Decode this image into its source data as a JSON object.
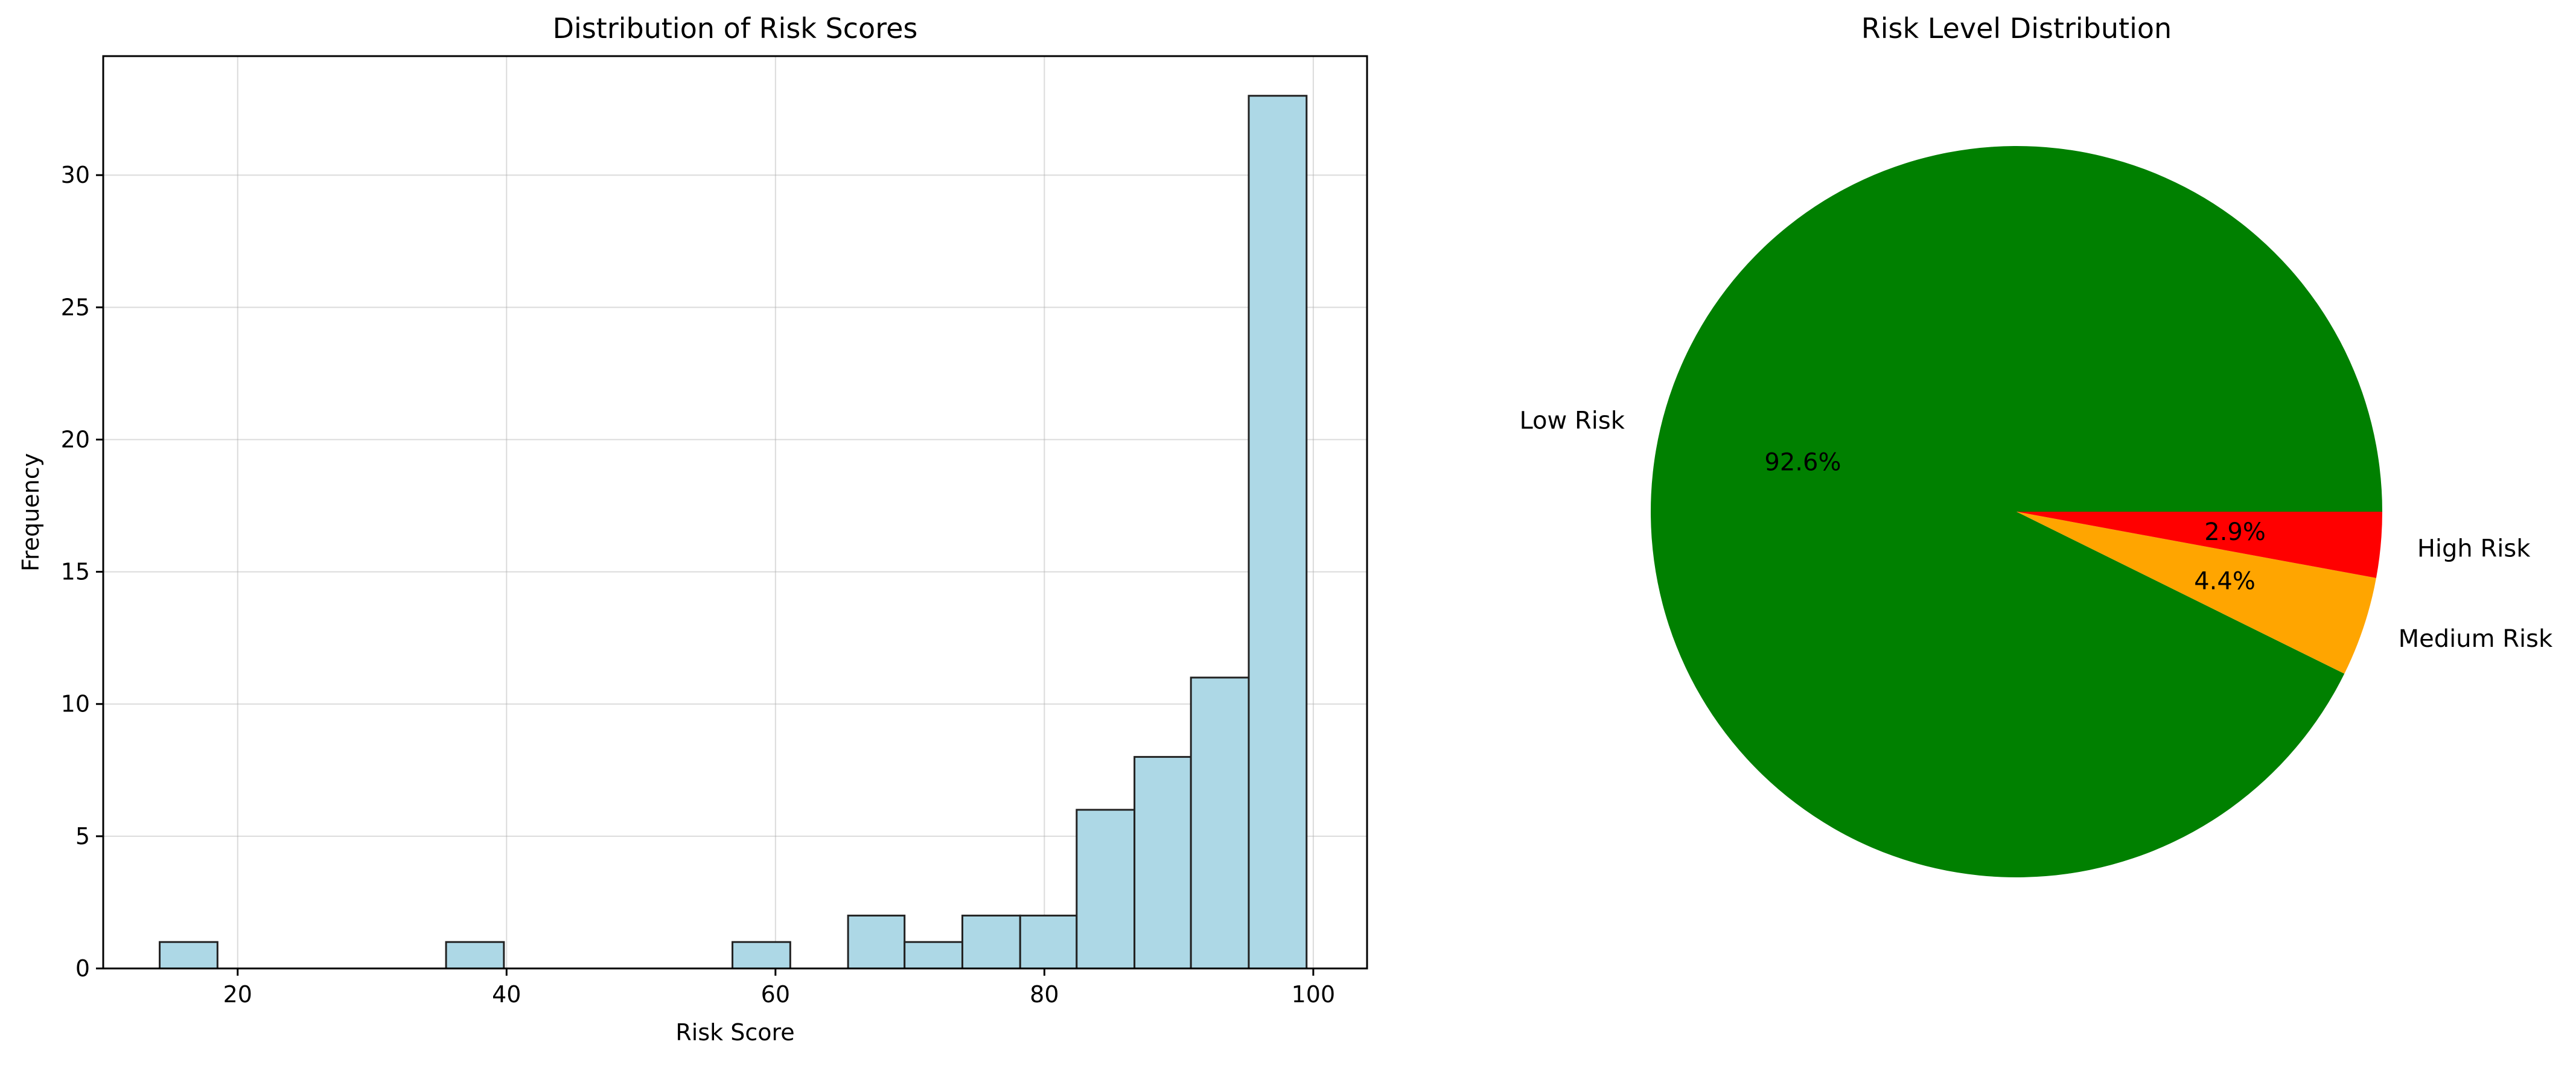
{
  "chart_data": [
    {
      "type": "bar",
      "title": "Distribution of Risk Scores",
      "xlabel": "Risk Score",
      "ylabel": "Frequency",
      "xlim": [
        10.0,
        104.0
      ],
      "ylim": [
        0,
        34.5
      ],
      "xticks": [
        20,
        40,
        60,
        80,
        100
      ],
      "yticks": [
        0,
        5,
        10,
        15,
        20,
        25,
        30
      ],
      "grid": true,
      "bar_color": "#add8e6",
      "edge_color": "#222222",
      "bins": [
        {
          "start": 14.2,
          "end": 18.5,
          "count": 1
        },
        {
          "start": 18.5,
          "end": 22.8,
          "count": 0
        },
        {
          "start": 22.8,
          "end": 27.0,
          "count": 0
        },
        {
          "start": 27.0,
          "end": 31.3,
          "count": 0
        },
        {
          "start": 31.3,
          "end": 35.5,
          "count": 0
        },
        {
          "start": 35.5,
          "end": 39.8,
          "count": 1
        },
        {
          "start": 39.8,
          "end": 44.1,
          "count": 0
        },
        {
          "start": 44.1,
          "end": 48.3,
          "count": 0
        },
        {
          "start": 48.3,
          "end": 52.6,
          "count": 0
        },
        {
          "start": 52.6,
          "end": 56.8,
          "count": 0
        },
        {
          "start": 56.8,
          "end": 61.1,
          "count": 1
        },
        {
          "start": 61.1,
          "end": 65.4,
          "count": 0
        },
        {
          "start": 65.4,
          "end": 69.6,
          "count": 2
        },
        {
          "start": 69.6,
          "end": 73.9,
          "count": 1
        },
        {
          "start": 73.9,
          "end": 78.2,
          "count": 2
        },
        {
          "start": 78.2,
          "end": 82.4,
          "count": 2
        },
        {
          "start": 82.4,
          "end": 86.7,
          "count": 6
        },
        {
          "start": 86.7,
          "end": 90.9,
          "count": 8
        },
        {
          "start": 90.9,
          "end": 95.2,
          "count": 11
        },
        {
          "start": 95.2,
          "end": 99.5,
          "count": 33
        }
      ]
    },
    {
      "type": "pie",
      "title": "Risk Level Distribution",
      "slices": [
        {
          "label": "Low Risk",
          "value": 92.6,
          "pct_label": "92.6%",
          "color": "#008000"
        },
        {
          "label": "Medium Risk",
          "value": 4.4,
          "pct_label": "4.4%",
          "color": "#ffa500"
        },
        {
          "label": "High Risk",
          "value": 2.9,
          "pct_label": "2.9%",
          "color": "#ff0000"
        }
      ]
    }
  ]
}
